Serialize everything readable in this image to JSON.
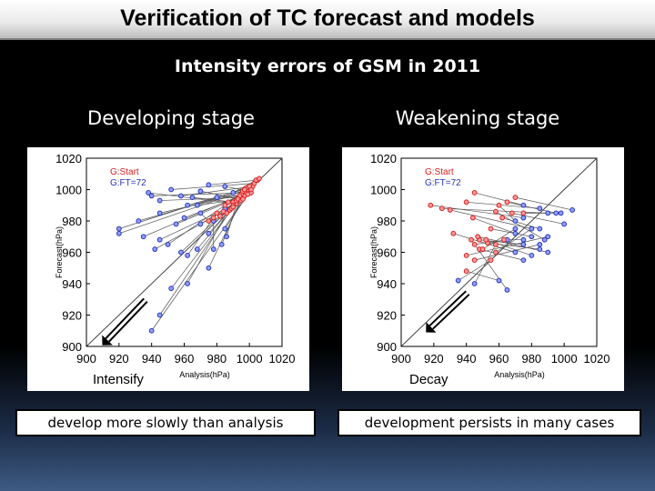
{
  "header": {
    "title": "Verification of TC forecast and models"
  },
  "subtitle": "Intensity errors of GSM in 2011",
  "colors": {
    "start": "#d42020",
    "forecast": "#2a35b8",
    "line": "#555555"
  },
  "chart_data": [
    {
      "type": "scatter",
      "panel_title": "Developing stage",
      "xlabel": "Analysis(hPa)",
      "ylabel": "Forecast(hPa)",
      "xlim": [
        900,
        1020
      ],
      "ylim": [
        900,
        1020
      ],
      "x_ticks": [
        900,
        920,
        940,
        960,
        980,
        1000,
        1020
      ],
      "y_ticks": [
        900,
        920,
        940,
        960,
        980,
        1000,
        1020
      ],
      "legend": [
        "G:Start",
        "G:FT=72"
      ],
      "arrow_label": "Intensify",
      "caption": "develop more slowly than analysis",
      "pairs": [
        {
          "start": [
            998,
            998
          ],
          "end": [
            940,
            996
          ]
        },
        {
          "start": [
            1002,
            1002
          ],
          "end": [
            958,
            996
          ]
        },
        {
          "start": [
            996,
            995
          ],
          "end": [
            945,
            993
          ]
        },
        {
          "start": [
            1000,
            1001
          ],
          "end": [
            962,
            990
          ]
        },
        {
          "start": [
            994,
            994
          ],
          "end": [
            970,
            999
          ]
        },
        {
          "start": [
            1003,
            1004
          ],
          "end": [
            952,
            1000
          ]
        },
        {
          "start": [
            992,
            991
          ],
          "end": [
            938,
            998
          ]
        },
        {
          "start": [
            1005,
            1006
          ],
          "end": [
            975,
            1003
          ]
        },
        {
          "start": [
            990,
            992
          ],
          "end": [
            965,
            995
          ]
        },
        {
          "start": [
            1000,
            999
          ],
          "end": [
            985,
            1002
          ]
        },
        {
          "start": [
            997,
            996
          ],
          "end": [
            980,
            995
          ]
        },
        {
          "start": [
            999,
            1000
          ],
          "end": [
            932,
            980
          ]
        },
        {
          "start": [
            995,
            997
          ],
          "end": [
            945,
            985
          ]
        },
        {
          "start": [
            993,
            995
          ],
          "end": [
            960,
            982
          ]
        },
        {
          "start": [
            1001,
            998
          ],
          "end": [
            970,
            978
          ]
        },
        {
          "start": [
            998,
            1001
          ],
          "end": [
            920,
            975
          ]
        },
        {
          "start": [
            996,
            999
          ],
          "end": [
            920,
            972
          ]
        },
        {
          "start": [
            994,
            996
          ],
          "end": [
            935,
            970
          ]
        },
        {
          "start": [
            990,
            990
          ],
          "end": [
            945,
            968
          ]
        },
        {
          "start": [
            985,
            990
          ],
          "end": [
            950,
            965
          ]
        },
        {
          "start": [
            992,
            993
          ],
          "end": [
            958,
            960
          ]
        },
        {
          "start": [
            980,
            985
          ],
          "end": [
            962,
            958
          ]
        },
        {
          "start": [
            988,
            987
          ],
          "end": [
            968,
            962
          ]
        },
        {
          "start": [
            1004,
            1006
          ],
          "end": [
            975,
            972
          ]
        },
        {
          "start": [
            997,
            1000
          ],
          "end": [
            983,
            965
          ]
        },
        {
          "start": [
            993,
            994
          ],
          "end": [
            986,
            970
          ]
        },
        {
          "start": [
            989,
            988
          ],
          "end": [
            978,
            980
          ]
        },
        {
          "start": [
            975,
            980
          ],
          "end": [
            970,
            985
          ]
        },
        {
          "start": [
            982,
            983
          ],
          "end": [
            985,
            988
          ]
        },
        {
          "start": [
            995,
            993
          ],
          "end": [
            975,
            950
          ]
        },
        {
          "start": [
            986,
            985
          ],
          "end": [
            962,
            940
          ]
        },
        {
          "start": [
            1000,
            1002
          ],
          "end": [
            952,
            937
          ]
        },
        {
          "start": [
            990,
            989
          ],
          "end": [
            945,
            920
          ]
        },
        {
          "start": [
            999,
            997
          ],
          "end": [
            940,
            910
          ]
        },
        {
          "start": [
            1001,
            1000
          ],
          "end": [
            985,
            975
          ]
        },
        {
          "start": [
            996,
            994
          ],
          "end": [
            968,
            990
          ]
        },
        {
          "start": [
            978,
            982
          ],
          "end": [
            978,
            962
          ]
        },
        {
          "start": [
            984,
            986
          ],
          "end": [
            942,
            962
          ]
        },
        {
          "start": [
            1006,
            1007
          ],
          "end": [
            990,
            998
          ]
        },
        {
          "start": [
            987,
            992
          ],
          "end": [
            955,
            978
          ]
        }
      ]
    },
    {
      "type": "scatter",
      "panel_title": "Weakening stage",
      "xlabel": "Analysis(hPa)",
      "ylabel": "Forecast(hPa)",
      "xlim": [
        900,
        1020
      ],
      "ylim": [
        900,
        1020
      ],
      "x_ticks": [
        900,
        920,
        940,
        960,
        980,
        1000,
        1020
      ],
      "y_ticks": [
        900,
        920,
        940,
        960,
        980,
        1000,
        1020
      ],
      "legend": [
        "G:Start",
        "G:FT=72"
      ],
      "arrow_label": "Decay",
      "caption": "development persists in many cases",
      "pairs": [
        {
          "start": [
            945,
            998
          ],
          "end": [
            975,
            990
          ]
        },
        {
          "start": [
            940,
            992
          ],
          "end": [
            985,
            988
          ]
        },
        {
          "start": [
            925,
            988
          ],
          "end": [
            990,
            985
          ]
        },
        {
          "start": [
            918,
            990
          ],
          "end": [
            975,
            982
          ]
        },
        {
          "start": [
            930,
            987
          ],
          "end": [
            980,
            975
          ]
        },
        {
          "start": [
            960,
            990
          ],
          "end": [
            970,
            980
          ]
        },
        {
          "start": [
            965,
            992
          ],
          "end": [
            995,
            985
          ]
        },
        {
          "start": [
            958,
            986
          ],
          "end": [
            988,
            968
          ]
        },
        {
          "start": [
            955,
            975
          ],
          "end": [
            980,
            970
          ]
        },
        {
          "start": [
            932,
            972
          ],
          "end": [
            970,
            960
          ]
        },
        {
          "start": [
            948,
            968
          ],
          "end": [
            975,
            965
          ]
        },
        {
          "start": [
            945,
            965
          ],
          "end": [
            965,
            968
          ]
        },
        {
          "start": [
            953,
            966
          ],
          "end": [
            985,
            962
          ]
        },
        {
          "start": [
            947,
            970
          ],
          "end": [
            990,
            960
          ]
        },
        {
          "start": [
            952,
            968
          ],
          "end": [
            980,
            958
          ]
        },
        {
          "start": [
            948,
            962
          ],
          "end": [
            975,
            955
          ]
        },
        {
          "start": [
            958,
            960
          ],
          "end": [
            980,
            975
          ]
        },
        {
          "start": [
            940,
            958
          ],
          "end": [
            990,
            970
          ]
        },
        {
          "start": [
            950,
            962
          ],
          "end": [
            970,
            975
          ]
        },
        {
          "start": [
            945,
            955
          ],
          "end": [
            985,
            965
          ]
        },
        {
          "start": [
            958,
            965
          ],
          "end": [
            945,
            940
          ]
        },
        {
          "start": [
            940,
            948
          ],
          "end": [
            960,
            942
          ]
        },
        {
          "start": [
            955,
            955
          ],
          "end": [
            935,
            942
          ]
        },
        {
          "start": [
            970,
            995
          ],
          "end": [
            1005,
            987
          ]
        },
        {
          "start": [
            968,
            985
          ],
          "end": [
            1000,
            978
          ]
        },
        {
          "start": [
            943,
            968
          ],
          "end": [
            965,
            936
          ]
        },
        {
          "start": [
            975,
            985
          ],
          "end": [
            998,
            985
          ]
        },
        {
          "start": [
            962,
            982
          ],
          "end": [
            985,
            975
          ]
        },
        {
          "start": [
            963,
            968
          ],
          "end": [
            975,
            968
          ]
        },
        {
          "start": [
            944,
            982
          ],
          "end": [
            970,
            972
          ]
        }
      ]
    }
  ]
}
